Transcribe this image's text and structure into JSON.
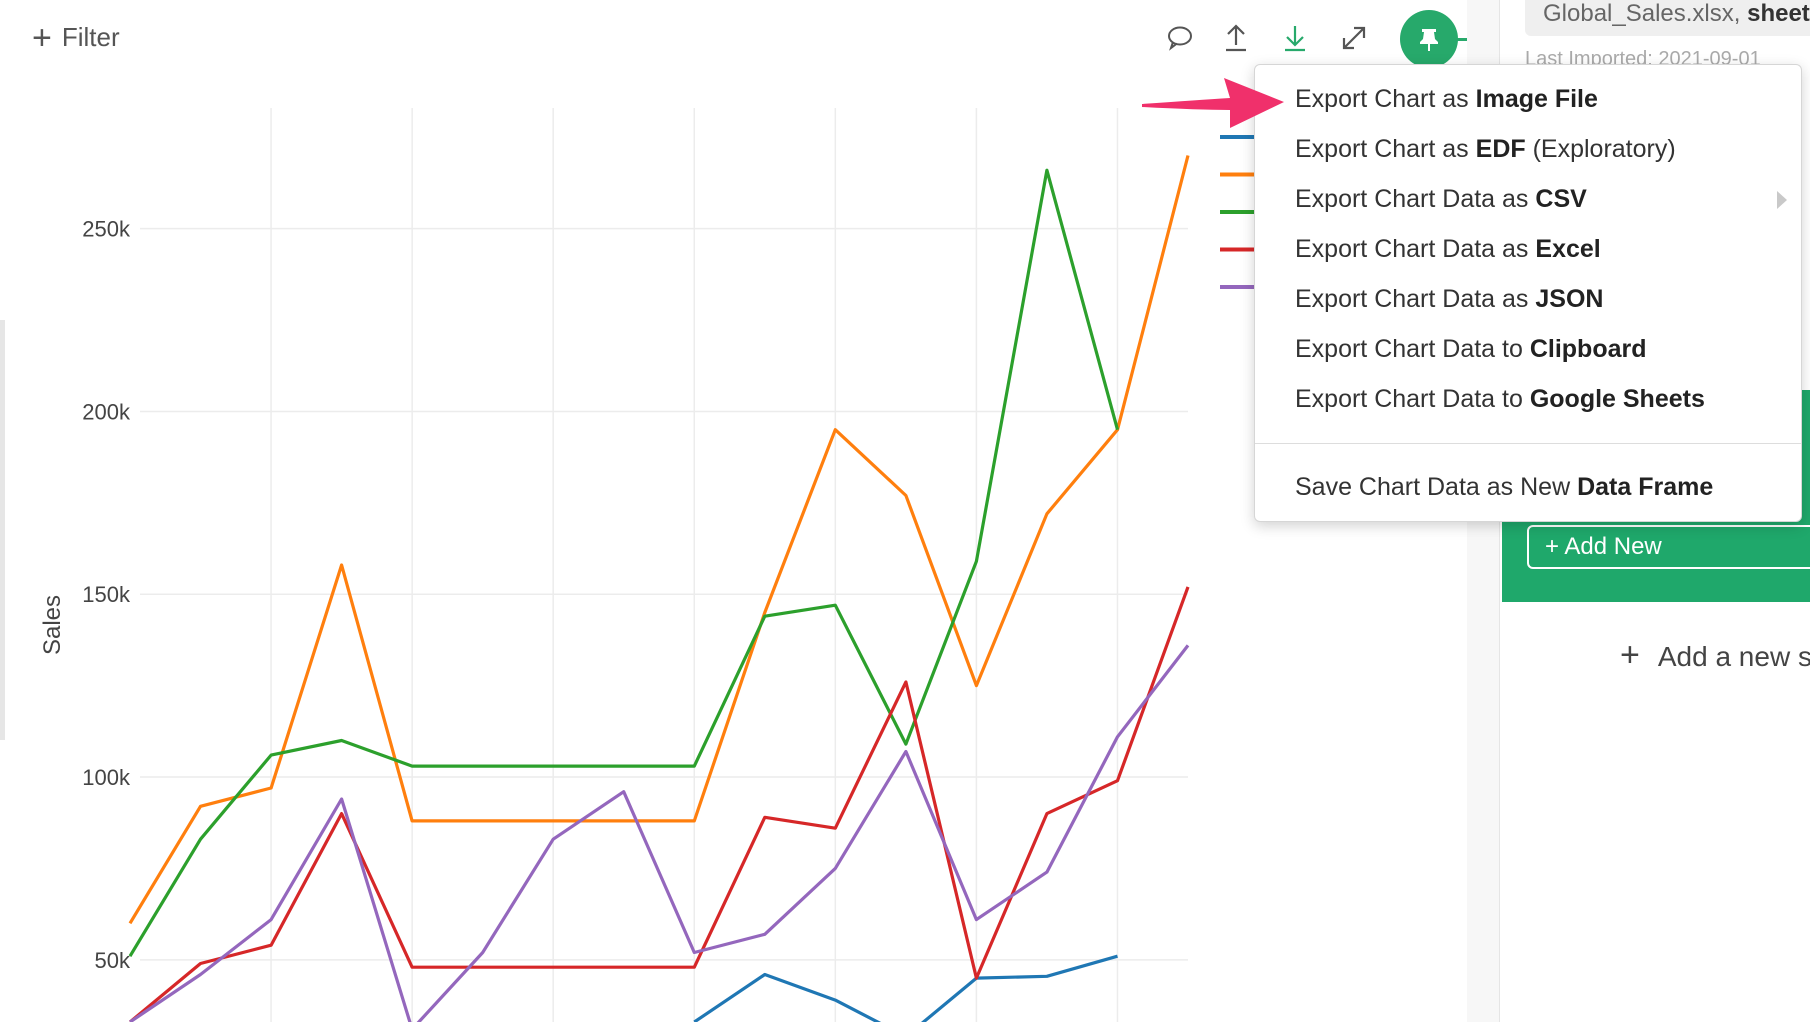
{
  "toolbar": {
    "filter_label": "Filter",
    "icons": [
      "comment-icon",
      "upload-icon",
      "download-icon",
      "expand-icon",
      "pin-icon"
    ]
  },
  "chart_data": {
    "type": "line",
    "ylabel": "Sales",
    "yticks": [
      "50k",
      "100k",
      "150k",
      "200k",
      "250k"
    ],
    "ytick_values": [
      50000,
      100000,
      150000,
      200000,
      250000
    ],
    "ylim": [
      33000,
      283000
    ],
    "x": [
      0,
      1,
      2,
      3,
      4,
      5,
      6,
      7,
      8,
      9,
      10,
      11,
      12,
      13,
      14,
      15
    ],
    "series": [
      {
        "color": "#1f77b4",
        "values": [
          null,
          null,
          null,
          null,
          null,
          null,
          null,
          null,
          33000,
          46000,
          39000,
          29000,
          45000,
          45500,
          51000,
          null
        ]
      },
      {
        "color": "#ff7f0e",
        "values": [
          60000,
          92000,
          97000,
          158000,
          88000,
          88000,
          88000,
          88000,
          88000,
          145000,
          195000,
          177000,
          125000,
          172000,
          195000,
          270000
        ]
      },
      {
        "color": "#2ca02c",
        "values": [
          51000,
          83000,
          106000,
          110000,
          103000,
          103000,
          103000,
          103000,
          103000,
          144000,
          147000,
          109000,
          159000,
          266000,
          195000,
          null
        ]
      },
      {
        "color": "#d62728",
        "values": [
          33000,
          49000,
          54000,
          90000,
          48000,
          48000,
          48000,
          48000,
          48000,
          89000,
          86000,
          126000,
          45000,
          90000,
          99000,
          152000
        ]
      },
      {
        "color": "#9467bd",
        "values": [
          33000,
          46000,
          61000,
          94000,
          31000,
          52000,
          83000,
          96000,
          52000,
          57000,
          75000,
          107000,
          61000,
          74000,
          111000,
          136000
        ]
      }
    ],
    "grid": true,
    "legend": "top-right"
  },
  "menu": {
    "items": [
      {
        "prefix": "Export Chart as ",
        "bold": "Image File",
        "suffix": ""
      },
      {
        "prefix": "Export Chart as ",
        "bold": "EDF",
        "suffix": " (Exploratory)"
      },
      {
        "prefix": "Export Chart Data as ",
        "bold": "CSV",
        "suffix": ""
      },
      {
        "prefix": "Export Chart Data as ",
        "bold": "Excel",
        "suffix": ""
      },
      {
        "prefix": "Export Chart Data as ",
        "bold": "JSON",
        "suffix": ""
      },
      {
        "prefix": "Export Chart Data to ",
        "bold": "Clipboard",
        "suffix": ""
      },
      {
        "prefix": "Export Chart Data to ",
        "bold": "Google Sheets",
        "suffix": ""
      },
      {
        "prefix": "Save Chart Data as New ",
        "bold": "Data Frame",
        "suffix": ""
      }
    ]
  },
  "panel": {
    "file_name": "Global_Sales.xlsx, ",
    "file_sheet": "sheet",
    "imported": "Last Imported: 2021-09-01",
    "add_new": "+ Add New",
    "add_step": "Add a new s"
  },
  "colors": {
    "accent": "#1fa86b",
    "arrow": "#f0306b"
  }
}
